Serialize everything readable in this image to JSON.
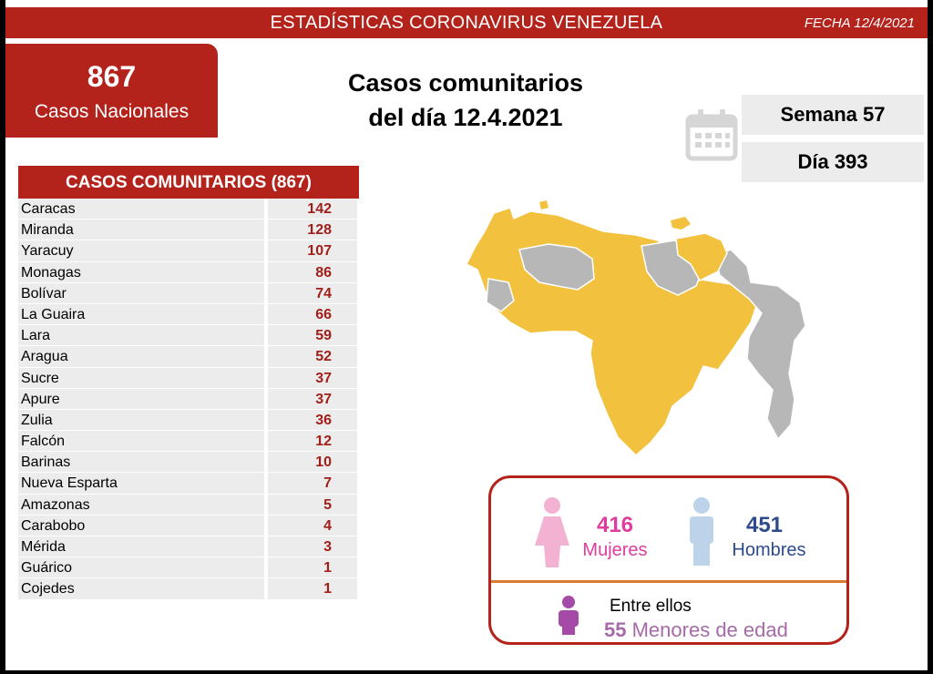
{
  "header": {
    "title": "ESTADÍSTICAS CORONAVIRUS VENEZUELA",
    "date": "FECHA 12/4/2021"
  },
  "national": {
    "count": "867",
    "label": "Casos Nacionales"
  },
  "headline": {
    "line1": "Casos comunitarios",
    "line2": "del día 12.4.2021"
  },
  "week": "Semana 57",
  "day": "Día 393",
  "table": {
    "header": "CASOS COMUNITARIOS (867)",
    "rows": [
      {
        "state": "Caracas",
        "value": "142"
      },
      {
        "state": "Miranda",
        "value": "128"
      },
      {
        "state": "Yaracuy",
        "value": "107"
      },
      {
        "state": "Monagas",
        "value": "86"
      },
      {
        "state": "Bolívar",
        "value": "74"
      },
      {
        "state": "La Guaira",
        "value": "66"
      },
      {
        "state": "Lara",
        "value": "59"
      },
      {
        "state": "Aragua",
        "value": "52"
      },
      {
        "state": "Sucre",
        "value": "37"
      },
      {
        "state": "Apure",
        "value": "37"
      },
      {
        "state": "Zulia",
        "value": "36"
      },
      {
        "state": "Falcón",
        "value": "12"
      },
      {
        "state": "Barinas",
        "value": "10"
      },
      {
        "state": "Nueva Esparta",
        "value": "7"
      },
      {
        "state": "Amazonas",
        "value": "5"
      },
      {
        "state": "Carabobo",
        "value": "4"
      },
      {
        "state": "Mérida",
        "value": "3"
      },
      {
        "state": "Guárico",
        "value": "1"
      },
      {
        "state": "Cojedes",
        "value": "1"
      }
    ]
  },
  "gender": {
    "women_count": "416",
    "women_label": "Mujeres",
    "men_count": "451",
    "men_label": "Hombres",
    "among": "Entre ellos",
    "minors_count": "55",
    "minors_label": "Menores de edad"
  },
  "colors": {
    "brand_red": "#b3231c",
    "map_yellow": "#f2c13e",
    "map_gray": "#b7b7b7",
    "women_pink": "#e03c9c",
    "men_blue": "#2c4a8c",
    "minors_purple": "#a66aa8"
  },
  "icons": [
    "calendar-icon",
    "woman-icon",
    "man-icon",
    "child-icon"
  ]
}
